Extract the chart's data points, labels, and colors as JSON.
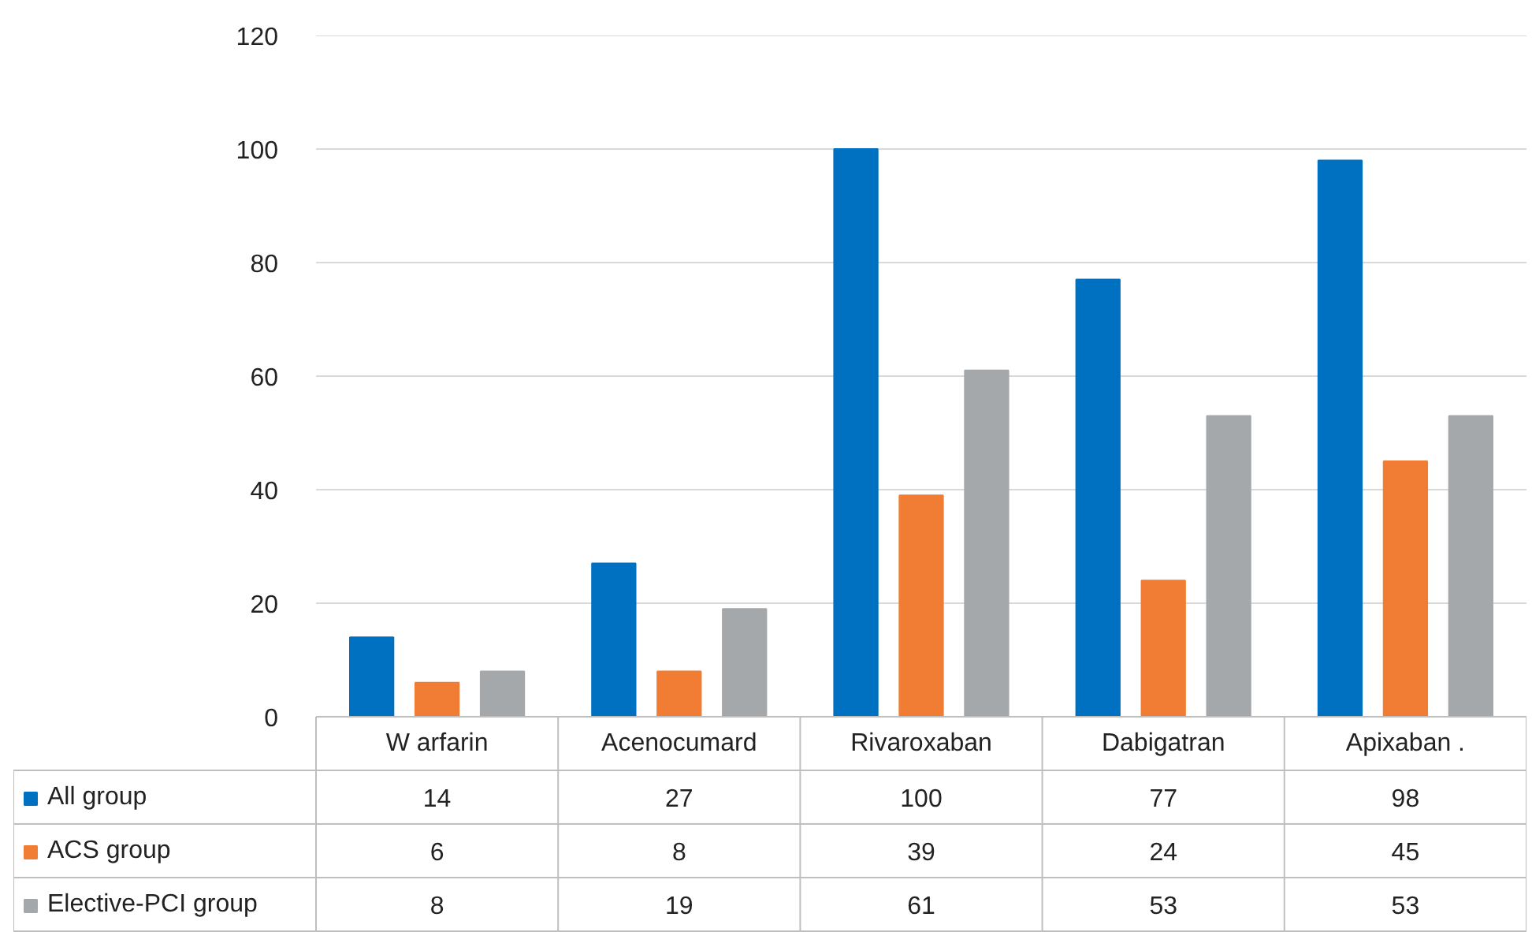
{
  "chart_data": {
    "type": "bar",
    "categories": [
      "W arfarin",
      "Acenocumard",
      "Rivaroxaban",
      "Dabigatran",
      "Apixaban ."
    ],
    "series": [
      {
        "name": "All group",
        "color": "#0070c0",
        "values": [
          14,
          27,
          100,
          77,
          98
        ]
      },
      {
        "name": "ACS group",
        "color": "#f07d33",
        "values": [
          6,
          8,
          39,
          24,
          45
        ]
      },
      {
        "name": "Elective-PCI group",
        "color": "#a5a8aa",
        "values": [
          8,
          19,
          61,
          53,
          53
        ]
      }
    ],
    "ylim": [
      0,
      120
    ],
    "yticks": [
      0,
      20,
      40,
      60,
      80,
      100,
      120
    ],
    "grid": "y",
    "legend": "bottom left",
    "data_labels": true
  }
}
